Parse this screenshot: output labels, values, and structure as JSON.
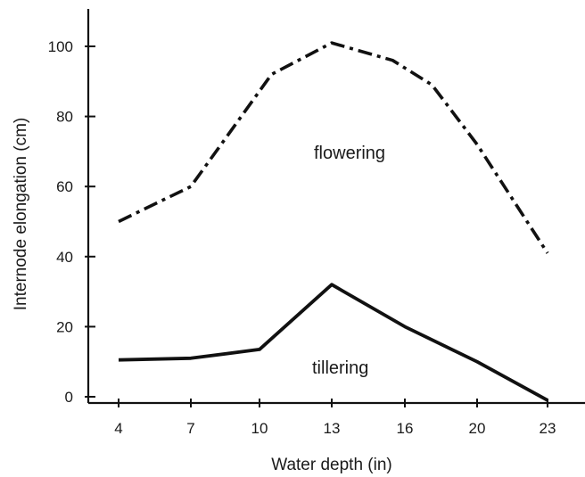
{
  "chart_data": {
    "type": "line",
    "xlabel": "Water depth (in)",
    "ylabel": "Internode elongation (cm)",
    "x_ticks": [
      "4",
      "7",
      "10",
      "13",
      "16",
      "20",
      "23"
    ],
    "y_ticks": [
      "0",
      "20",
      "40",
      "60",
      "80",
      "100"
    ],
    "ylim": [
      0,
      110
    ],
    "grid": false,
    "series": [
      {
        "name": "flowering",
        "line_style": "dash-dot",
        "color": "#111111",
        "points": [
          [
            4,
            50
          ],
          [
            7,
            60
          ],
          [
            10.5,
            92
          ],
          [
            13,
            101
          ],
          [
            15.5,
            96
          ],
          [
            17.5,
            89
          ],
          [
            20,
            72
          ],
          [
            23,
            41
          ]
        ]
      },
      {
        "name": "tillering",
        "line_style": "solid",
        "color": "#111111",
        "points": [
          [
            4,
            10.5
          ],
          [
            7,
            11
          ],
          [
            10,
            13.5
          ],
          [
            13,
            32
          ],
          [
            16,
            20
          ],
          [
            20,
            10
          ],
          [
            23,
            -1
          ]
        ]
      }
    ]
  }
}
